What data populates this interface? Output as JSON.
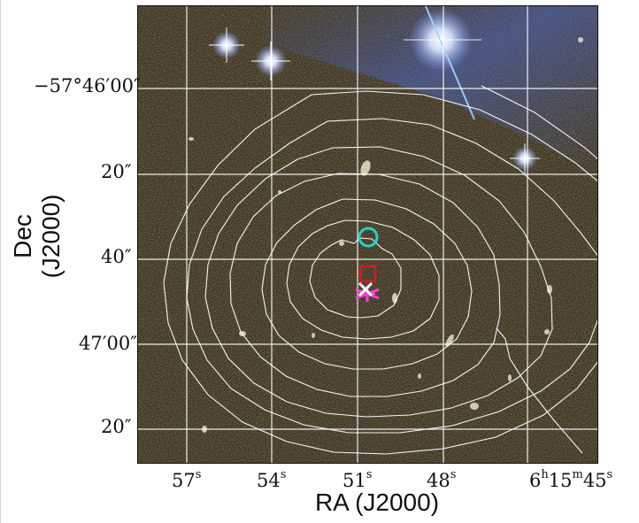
{
  "figure": {
    "x_axis": {
      "label": "RA (J2000)",
      "ticks": [
        {
          "main": "57",
          "sup": "s"
        },
        {
          "main": "54",
          "sup": "s"
        },
        {
          "main": "51",
          "sup": "s"
        },
        {
          "main": "48",
          "sup": "s"
        },
        {
          "main": "6",
          "sup": "h",
          "main2": "15",
          "sup2": "m",
          "main3": "45",
          "sup3": "s"
        }
      ]
    },
    "y_axis": {
      "label": "Dec (J2000)",
      "ticks": [
        {
          "text": "−57°46′00″"
        },
        {
          "text": "20″"
        },
        {
          "text": "40″"
        },
        {
          "text": "47′00″"
        },
        {
          "text": "20″"
        }
      ]
    },
    "colors": {
      "grid": "#ffffff",
      "contour": "#ffffff",
      "circle_marker": "#2ad0c8",
      "square_marker": "#d41e1e",
      "cross_marker": "#ff40d0",
      "x_marker": "#ffffff"
    },
    "markers": [
      {
        "shape": "circle",
        "color": "cyan"
      },
      {
        "shape": "square",
        "color": "red"
      },
      {
        "shape": "cross",
        "color": "magenta"
      },
      {
        "shape": "x",
        "color": "white"
      }
    ]
  }
}
